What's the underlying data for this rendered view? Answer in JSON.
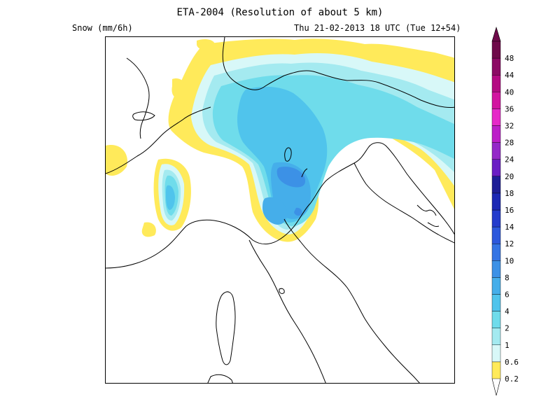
{
  "header": {
    "title": "ETA-2004 (Resolution of about 5 km)",
    "variable": "Snow (mm/6h)",
    "valid_time": "Thu 21-02-2013 18 UTC (Tue 12+54)"
  },
  "colorbar": {
    "levels": [
      "0.2",
      "0.6",
      "1",
      "2",
      "4",
      "6",
      "8",
      "10",
      "12",
      "14",
      "16",
      "18",
      "20",
      "24",
      "28",
      "32",
      "36",
      "40",
      "44",
      "48"
    ],
    "colors": [
      "#ffea5a",
      "#d8f8f8",
      "#a4eaf0",
      "#6fdceb",
      "#50c4ec",
      "#45aeea",
      "#3c91e6",
      "#3474e4",
      "#2c58dc",
      "#243ccc",
      "#1c28b4",
      "#1e1e96",
      "#6a1ec4",
      "#9428c8",
      "#bc1ec8",
      "#e628c8",
      "#d214a0",
      "#b40a82",
      "#8c0a64",
      "#6e0a4a"
    ]
  },
  "legend_icons": {
    "top": "triangle-up-icon",
    "bottom": "triangle-down-icon"
  }
}
